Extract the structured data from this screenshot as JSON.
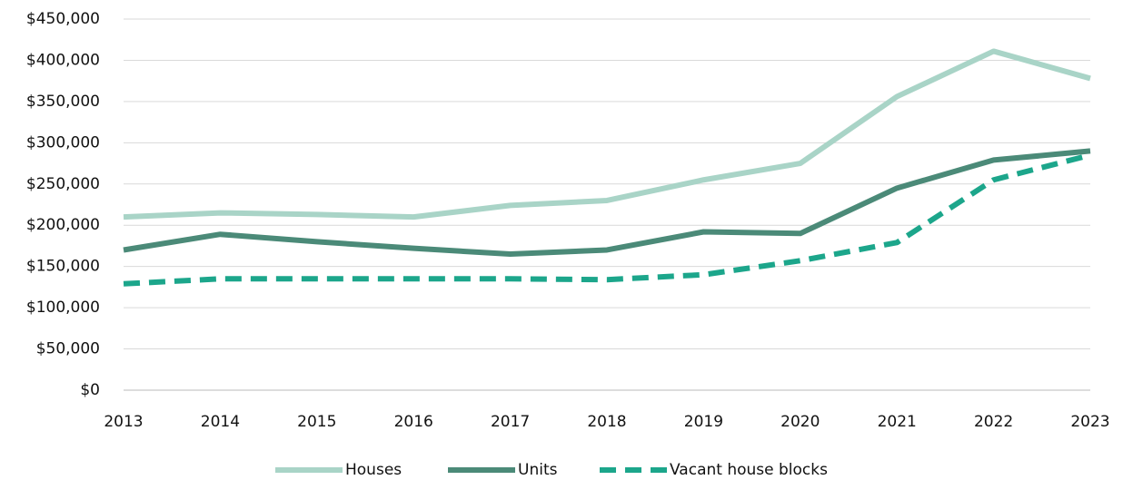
{
  "chart_data": {
    "type": "line",
    "categories": [
      "2013",
      "2014",
      "2015",
      "2016",
      "2017",
      "2018",
      "2019",
      "2020",
      "2021",
      "2022",
      "2023"
    ],
    "series": [
      {
        "name": "Houses",
        "color": "#a9d4c7",
        "style": "solid",
        "values": [
          210000,
          215000,
          213000,
          210000,
          224000,
          230000,
          255000,
          275000,
          356000,
          411000,
          378000
        ]
      },
      {
        "name": "Units",
        "color": "#4b8a78",
        "style": "solid",
        "values": [
          170000,
          189000,
          180000,
          172000,
          165000,
          170000,
          192000,
          190000,
          245000,
          279000,
          290000
        ]
      },
      {
        "name": "Vacant house blocks",
        "color": "#1ca68b",
        "style": "dashed",
        "values": [
          129000,
          135000,
          135000,
          135000,
          135000,
          134000,
          140000,
          157000,
          179000,
          255000,
          285000
        ]
      }
    ],
    "ylim": [
      0,
      450000
    ],
    "yticks": [
      {
        "value": 0,
        "label": "$0"
      },
      {
        "value": 50000,
        "label": "$50,000"
      },
      {
        "value": 100000,
        "label": "$100,000"
      },
      {
        "value": 150000,
        "label": "$150,000"
      },
      {
        "value": 200000,
        "label": "$200,000"
      },
      {
        "value": 250000,
        "label": "$250,000"
      },
      {
        "value": 300000,
        "label": "$300,000"
      },
      {
        "value": 350000,
        "label": "$350,000"
      },
      {
        "value": 400000,
        "label": "$400,000"
      },
      {
        "value": 450000,
        "label": "$450,000"
      }
    ],
    "grid": true,
    "legend": "bottom"
  }
}
